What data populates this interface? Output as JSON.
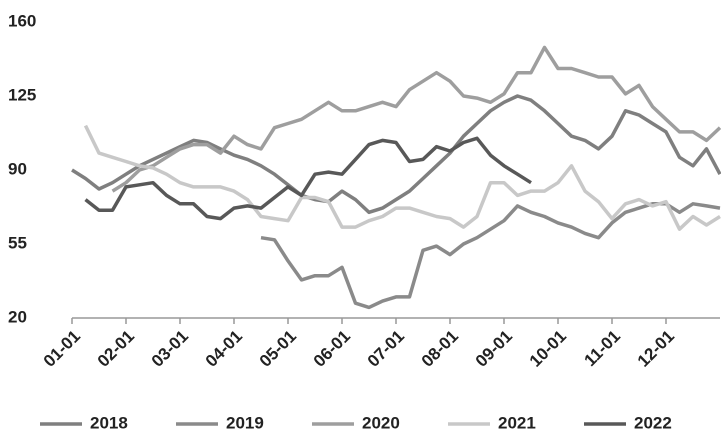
{
  "chart_data": {
    "type": "line",
    "categories": [
      "01-01",
      null,
      null,
      null,
      "02-01",
      null,
      null,
      null,
      "03-01",
      null,
      null,
      null,
      "04-01",
      null,
      null,
      null,
      "05-01",
      null,
      null,
      null,
      "06-01",
      null,
      null,
      null,
      "07-01",
      null,
      null,
      null,
      "08-01",
      null,
      null,
      null,
      "09-01",
      null,
      null,
      null,
      "10-01",
      null,
      null,
      null,
      "11-01",
      null,
      null,
      null,
      "12-01",
      null,
      null,
      null,
      null
    ],
    "ylim": [
      20,
      160
    ],
    "yticks": [
      20,
      55,
      90,
      125,
      160
    ],
    "grid": false,
    "legend": "bottom",
    "series": [
      {
        "name": "2018",
        "color": "#7f7f7f",
        "values": [
          90,
          86,
          81,
          84,
          88,
          92,
          95,
          98,
          101,
          104,
          103,
          100,
          97,
          95,
          92,
          88,
          83,
          78,
          76,
          75,
          80,
          76,
          70,
          72,
          76,
          80,
          86,
          92,
          98,
          106,
          112,
          118,
          122,
          125,
          123,
          118,
          112,
          106,
          104,
          100,
          106,
          118,
          116,
          112,
          108,
          96,
          92,
          100,
          88
        ]
      },
      {
        "name": "2019",
        "color": "#8a8a8a",
        "values": [
          null,
          null,
          null,
          null,
          null,
          null,
          null,
          null,
          null,
          null,
          null,
          null,
          null,
          null,
          58,
          57,
          47,
          38,
          40,
          40,
          44,
          27,
          25,
          28,
          30,
          30,
          52,
          54,
          50,
          55,
          58,
          62,
          66,
          73,
          70,
          68,
          65,
          63,
          60,
          58,
          65,
          70,
          72,
          74,
          74,
          70,
          74,
          73,
          72
        ]
      },
      {
        "name": "2020",
        "color": "#9e9e9e",
        "values": [
          null,
          null,
          null,
          80,
          84,
          90,
          92,
          96,
          100,
          102,
          102,
          98,
          106,
          102,
          100,
          110,
          112,
          114,
          118,
          122,
          118,
          118,
          120,
          122,
          120,
          128,
          132,
          136,
          132,
          125,
          124,
          122,
          126,
          136,
          136,
          148,
          138,
          138,
          136,
          134,
          134,
          126,
          130,
          120,
          114,
          108,
          108,
          104,
          110
        ]
      },
      {
        "name": "2021",
        "color": "#c8c8c8",
        "values": [
          null,
          111,
          98,
          96,
          94,
          92,
          91,
          88,
          84,
          82,
          82,
          82,
          80,
          76,
          68,
          67,
          66,
          77,
          77,
          75,
          63,
          63,
          66,
          68,
          72,
          72,
          70,
          68,
          67,
          63,
          68,
          84,
          84,
          78,
          80,
          80,
          84,
          92,
          80,
          75,
          67,
          74,
          76,
          73,
          75,
          62,
          68,
          64,
          68
        ]
      },
      {
        "name": "2022",
        "color": "#585858",
        "values": [
          null,
          76,
          71,
          71,
          82,
          83,
          84,
          78,
          74,
          74,
          68,
          67,
          72,
          73,
          72,
          77,
          82,
          78,
          88,
          89,
          88,
          95,
          102,
          104,
          103,
          94,
          95,
          101,
          99,
          103,
          105,
          97,
          92,
          88,
          84,
          null,
          null,
          null,
          null,
          null,
          null,
          null,
          null,
          null,
          null,
          null,
          null,
          null,
          null
        ]
      }
    ]
  }
}
